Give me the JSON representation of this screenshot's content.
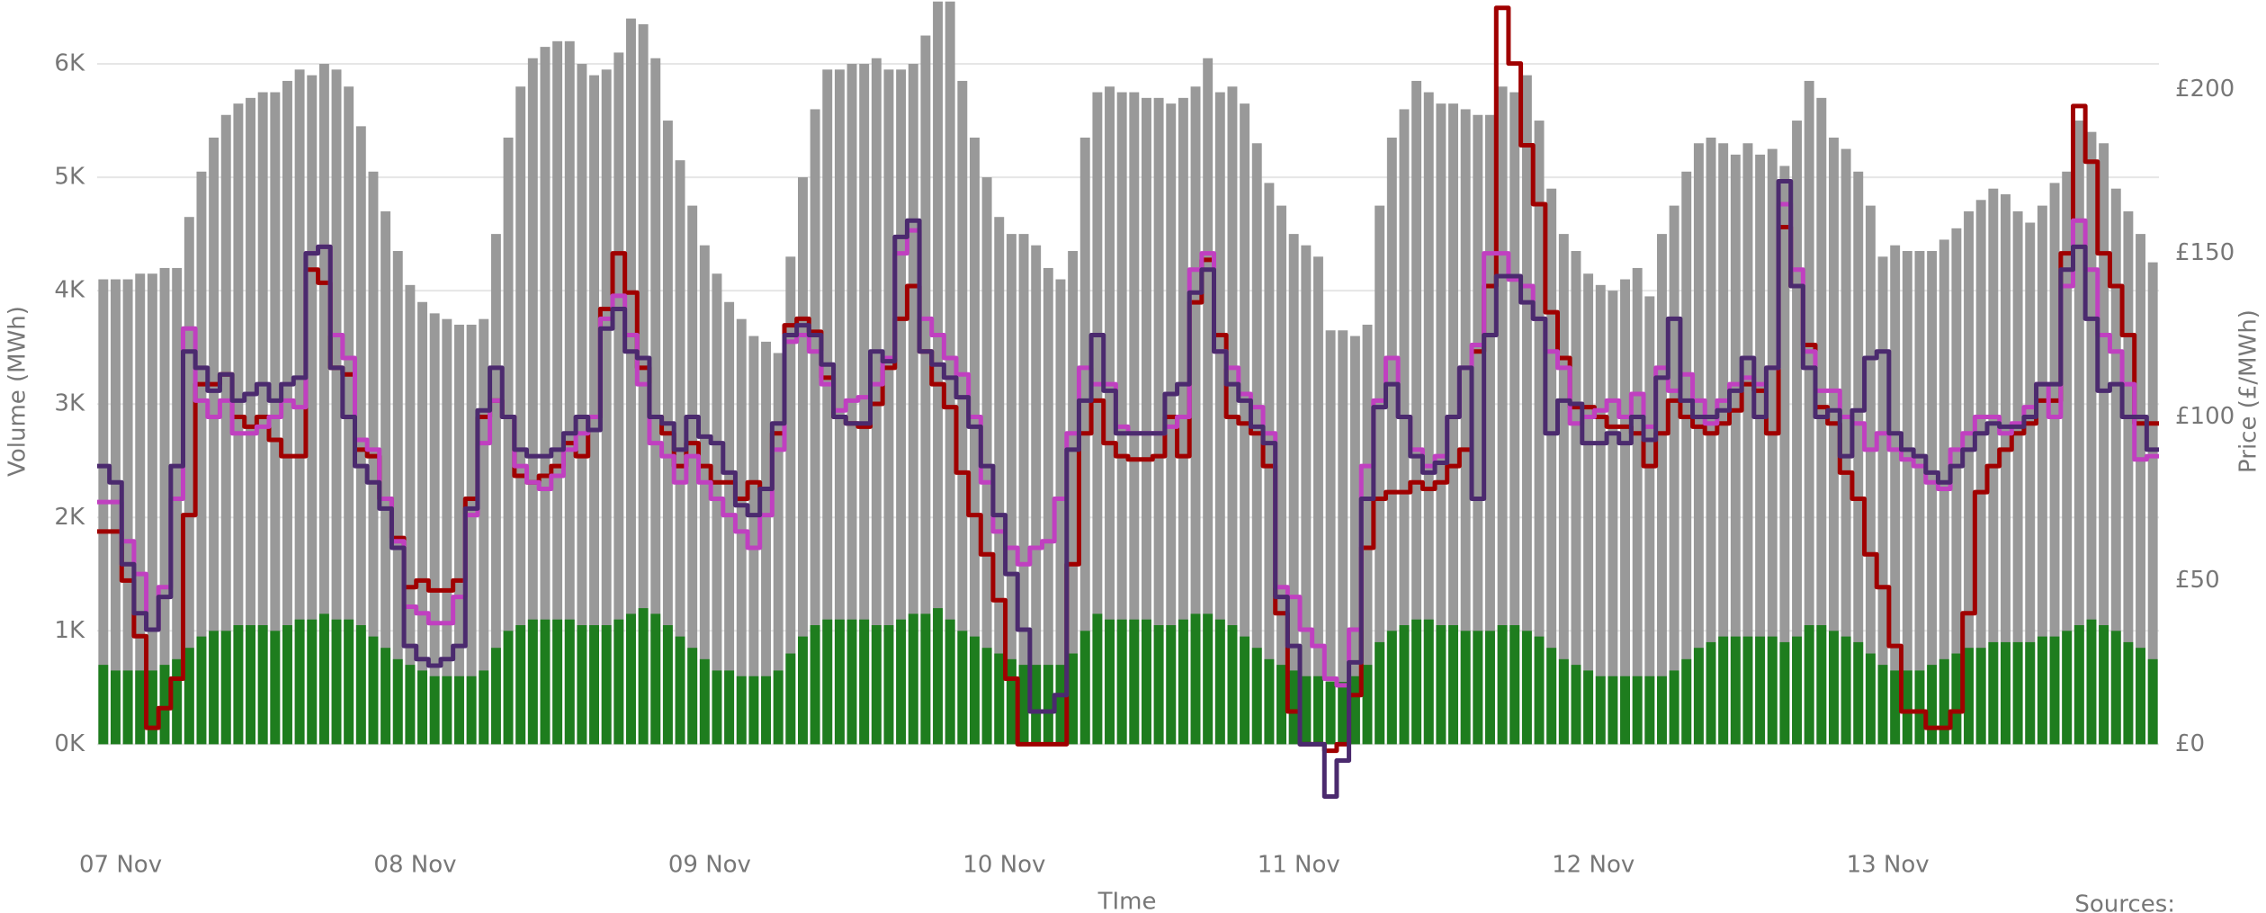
{
  "chart_data": {
    "type": "combo",
    "x_label": "TIme",
    "y_label": "Volume (MWh)",
    "y2_label": "Price (£/MWh)",
    "source": "Sources:",
    "categories": [
      "07 Nov",
      null,
      null,
      null,
      null,
      null,
      null,
      null,
      null,
      null,
      null,
      null,
      null,
      null,
      null,
      null,
      null,
      null,
      null,
      null,
      null,
      null,
      null,
      null,
      "08 Nov",
      null,
      null,
      null,
      null,
      null,
      null,
      null,
      null,
      null,
      null,
      null,
      null,
      null,
      null,
      null,
      null,
      null,
      null,
      null,
      null,
      null,
      null,
      null,
      "09 Nov",
      null,
      null,
      null,
      null,
      null,
      null,
      null,
      null,
      null,
      null,
      null,
      null,
      null,
      null,
      null,
      null,
      null,
      null,
      null,
      null,
      null,
      null,
      null,
      "10 Nov",
      null,
      null,
      null,
      null,
      null,
      null,
      null,
      null,
      null,
      null,
      null,
      null,
      null,
      null,
      null,
      null,
      null,
      null,
      null,
      null,
      null,
      null,
      null,
      "11 Nov",
      null,
      null,
      null,
      null,
      null,
      null,
      null,
      null,
      null,
      null,
      null,
      null,
      null,
      null,
      null,
      null,
      null,
      null,
      null,
      null,
      null,
      null,
      null,
      "12 Nov",
      null,
      null,
      null,
      null,
      null,
      null,
      null,
      null,
      null,
      null,
      null,
      null,
      null,
      null,
      null,
      null,
      null,
      null,
      null,
      null,
      null,
      null,
      null,
      "13 Nov",
      null,
      null,
      null,
      null,
      null,
      null,
      null,
      null,
      null,
      null,
      null,
      null,
      null,
      null,
      null,
      null,
      null,
      null,
      null,
      null,
      null,
      null,
      null
    ],
    "ylim": [
      -600,
      6500
    ],
    "yticks": [
      {
        "value": 0,
        "label": "0K"
      },
      {
        "value": 1000,
        "label": "1K"
      },
      {
        "value": 2000,
        "label": "2K"
      },
      {
        "value": 3000,
        "label": "3K"
      },
      {
        "value": 4000,
        "label": "4K"
      },
      {
        "value": 5000,
        "label": "5K"
      },
      {
        "value": 6000,
        "label": "6K"
      }
    ],
    "y2lim": [
      -20.8,
      225.2
    ],
    "y2ticks": [
      {
        "value": 0,
        "label": "£0"
      },
      {
        "value": 50,
        "label": "£50"
      },
      {
        "value": 100,
        "label": "£100"
      },
      {
        "value": 150,
        "label": "£150"
      },
      {
        "value": 200,
        "label": "£200"
      }
    ],
    "grid": true,
    "series": [
      {
        "type": "bar",
        "color": "#999999",
        "values": [
          4100,
          4100,
          4100,
          4150,
          4150,
          4200,
          4200,
          4650,
          5050,
          5350,
          5550,
          5650,
          5700,
          5750,
          5750,
          5850,
          5950,
          5900,
          6000,
          5950,
          5800,
          5450,
          5050,
          4700,
          4350,
          4050,
          3900,
          3800,
          3750,
          3700,
          3700,
          3750,
          4500,
          5350,
          5800,
          6050,
          6150,
          6200,
          6200,
          6000,
          5900,
          5950,
          6100,
          6400,
          6350,
          6050,
          5500,
          5150,
          4750,
          4400,
          4150,
          3900,
          3750,
          3600,
          3550,
          3450,
          4300,
          5000,
          5600,
          5950,
          5950,
          6000,
          6000,
          6050,
          5950,
          5950,
          6000,
          6250,
          6550,
          6550,
          5850,
          5350,
          5000,
          4650,
          4500,
          4500,
          4400,
          4200,
          4100,
          4350,
          5350,
          5750,
          5800,
          5750,
          5750,
          5700,
          5700,
          5650,
          5700,
          5800,
          6050,
          5750,
          5800,
          5650,
          5300,
          4950,
          4750,
          4500,
          4400,
          4300,
          3650,
          3650,
          3600,
          3700,
          4750,
          5350,
          5600,
          5850,
          5750,
          5650,
          5650,
          5600,
          5550,
          5550,
          5800,
          5750,
          5900,
          5500,
          4900,
          4500,
          4350,
          4150,
          4050,
          4000,
          4100,
          4200,
          3950,
          4500,
          4750,
          5050,
          5300,
          5350,
          5300,
          5200,
          5300,
          5200,
          5250,
          5100,
          5500,
          5850,
          5700,
          5350,
          5250,
          5050,
          4750,
          4300,
          4400,
          4350,
          4350,
          4350,
          4450,
          4550,
          4700,
          4800,
          4900,
          4850,
          4700,
          4600,
          4750,
          4950,
          5050,
          5500,
          5400,
          5300,
          4900,
          4700,
          4500,
          4250
        ]
      },
      {
        "type": "bar",
        "color": "#1e7d1e",
        "values": [
          700,
          650,
          650,
          650,
          650,
          700,
          750,
          850,
          950,
          1000,
          1000,
          1050,
          1050,
          1050,
          1000,
          1050,
          1100,
          1100,
          1150,
          1100,
          1100,
          1050,
          950,
          850,
          750,
          700,
          650,
          600,
          600,
          600,
          600,
          650,
          850,
          1000,
          1050,
          1100,
          1100,
          1100,
          1100,
          1050,
          1050,
          1050,
          1100,
          1150,
          1200,
          1150,
          1050,
          950,
          850,
          750,
          650,
          650,
          600,
          600,
          600,
          650,
          800,
          950,
          1050,
          1100,
          1100,
          1100,
          1100,
          1050,
          1050,
          1100,
          1150,
          1150,
          1200,
          1100,
          1000,
          950,
          850,
          800,
          750,
          700,
          700,
          700,
          700,
          800,
          1000,
          1150,
          1100,
          1100,
          1100,
          1100,
          1050,
          1050,
          1100,
          1150,
          1150,
          1100,
          1050,
          950,
          850,
          750,
          700,
          650,
          600,
          600,
          550,
          550,
          600,
          700,
          900,
          1000,
          1050,
          1100,
          1100,
          1050,
          1050,
          1000,
          1000,
          1000,
          1050,
          1050,
          1000,
          950,
          850,
          750,
          700,
          650,
          600,
          600,
          600,
          600,
          600,
          600,
          650,
          750,
          850,
          900,
          950,
          950,
          950,
          950,
          950,
          900,
          950,
          1050,
          1050,
          1000,
          950,
          900,
          800,
          700,
          650,
          650,
          650,
          700,
          750,
          800,
          850,
          850,
          900,
          900,
          900,
          900,
          950,
          950,
          1000,
          1050,
          1100,
          1050,
          1000,
          900,
          850,
          750
        ]
      },
      {
        "type": "line",
        "axis": "y2",
        "color": "#a00000",
        "values": [
          65,
          65,
          50,
          33,
          5,
          11,
          20,
          70,
          110,
          110,
          113,
          100,
          97,
          100,
          93,
          88,
          88,
          145,
          141,
          115,
          113,
          90,
          88,
          75,
          63,
          48,
          50,
          47,
          47,
          50,
          75,
          100,
          105,
          100,
          82,
          80,
          82,
          85,
          92,
          88,
          100,
          133,
          150,
          138,
          115,
          100,
          95,
          85,
          92,
          85,
          80,
          80,
          75,
          80,
          78,
          95,
          128,
          130,
          126,
          112,
          100,
          98,
          97,
          104,
          115,
          130,
          140,
          120,
          110,
          103,
          83,
          70,
          58,
          44,
          20,
          0,
          0,
          0,
          0,
          55,
          95,
          105,
          92,
          88,
          87,
          87,
          88,
          100,
          88,
          135,
          148,
          125,
          100,
          98,
          95,
          85,
          40,
          10,
          0,
          0,
          -2,
          0,
          15,
          60,
          75,
          77,
          77,
          80,
          78,
          80,
          85,
          90,
          120,
          140,
          225,
          208,
          183,
          165,
          132,
          118,
          103,
          103,
          100,
          97,
          97,
          95,
          85,
          95,
          105,
          100,
          97,
          95,
          98,
          102,
          110,
          108,
          95,
          158,
          140,
          122,
          103,
          98,
          83,
          75,
          58,
          48,
          30,
          10,
          10,
          5,
          5,
          10,
          40,
          77,
          85,
          90,
          95,
          98,
          105,
          105,
          150,
          195,
          178,
          150,
          140,
          125,
          98,
          98
        ]
      },
      {
        "type": "line",
        "axis": "y2",
        "color": "#c040c0",
        "values": [
          74,
          74,
          62,
          52,
          35,
          48,
          75,
          127,
          105,
          100,
          105,
          95,
          95,
          97,
          100,
          105,
          103,
          150,
          152,
          125,
          118,
          93,
          90,
          75,
          62,
          42,
          40,
          37,
          37,
          45,
          70,
          92,
          105,
          100,
          85,
          80,
          78,
          82,
          90,
          95,
          100,
          130,
          137,
          125,
          110,
          92,
          88,
          80,
          88,
          80,
          75,
          70,
          65,
          60,
          70,
          90,
          123,
          125,
          120,
          110,
          102,
          105,
          106,
          110,
          118,
          150,
          157,
          130,
          125,
          118,
          113,
          100,
          80,
          65,
          60,
          55,
          60,
          62,
          75,
          95,
          115,
          110,
          110,
          97,
          95,
          95,
          95,
          97,
          100,
          145,
          150,
          120,
          115,
          107,
          103,
          95,
          48,
          45,
          35,
          30,
          20,
          18,
          35,
          85,
          105,
          118,
          100,
          90,
          85,
          88,
          100,
          115,
          122,
          150,
          150,
          142,
          140,
          130,
          120,
          115,
          98,
          100,
          102,
          105,
          100,
          107,
          97,
          115,
          108,
          113,
          105,
          98,
          105,
          110,
          112,
          110,
          115,
          165,
          145,
          120,
          108,
          108,
          100,
          98,
          90,
          95,
          90,
          87,
          85,
          80,
          78,
          90,
          95,
          100,
          100,
          95,
          98,
          103,
          110,
          100,
          140,
          160,
          145,
          125,
          120,
          110,
          87,
          88
        ]
      },
      {
        "type": "line",
        "axis": "y2",
        "color": "#4b2a6e",
        "values": [
          85,
          80,
          55,
          40,
          35,
          45,
          85,
          120,
          115,
          108,
          113,
          105,
          107,
          110,
          105,
          110,
          112,
          150,
          152,
          115,
          100,
          85,
          80,
          72,
          60,
          30,
          26,
          24,
          26,
          30,
          72,
          102,
          115,
          100,
          90,
          88,
          88,
          90,
          95,
          100,
          96,
          127,
          133,
          120,
          118,
          100,
          98,
          90,
          100,
          94,
          92,
          83,
          73,
          70,
          78,
          98,
          125,
          128,
          125,
          116,
          100,
          98,
          98,
          120,
          117,
          155,
          160,
          120,
          116,
          112,
          106,
          97,
          85,
          70,
          52,
          35,
          10,
          10,
          15,
          90,
          105,
          125,
          108,
          95,
          95,
          95,
          95,
          107,
          110,
          138,
          145,
          120,
          110,
          105,
          97,
          92,
          45,
          30,
          0,
          0,
          -16,
          -5,
          25,
          75,
          103,
          110,
          100,
          88,
          83,
          86,
          100,
          115,
          75,
          125,
          143,
          143,
          135,
          130,
          95,
          105,
          104,
          92,
          92,
          95,
          92,
          100,
          93,
          112,
          130,
          105,
          100,
          100,
          102,
          108,
          118,
          100,
          115,
          172,
          140,
          115,
          100,
          102,
          88,
          102,
          118,
          120,
          95,
          90,
          88,
          83,
          80,
          85,
          90,
          95,
          98,
          97,
          97,
          100,
          110,
          110,
          145,
          152,
          130,
          108,
          110,
          100,
          100,
          90
        ]
      }
    ]
  }
}
